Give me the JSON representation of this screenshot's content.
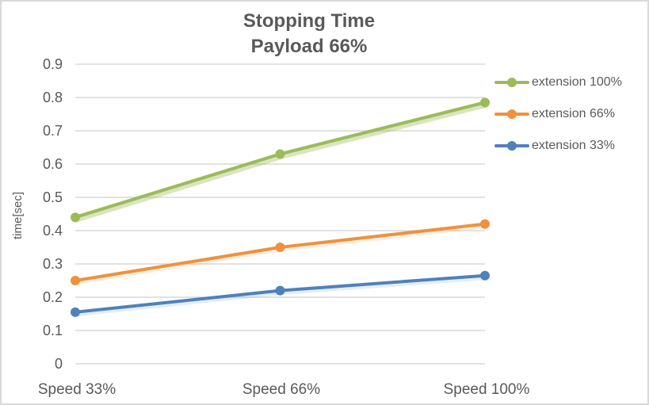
{
  "chart_data": {
    "type": "line",
    "title": "Stopping Time",
    "subtitle": "Payload 66%",
    "ylabel": "time[sec]",
    "categories": [
      "Speed 33%",
      "Speed 66%",
      "Speed 100%"
    ],
    "series": [
      {
        "name": "extension 100%",
        "color": "#9BBB59",
        "values": [
          0.44,
          0.63,
          0.785
        ]
      },
      {
        "name": "extension 66%",
        "color": "#F0913C",
        "values": [
          0.25,
          0.35,
          0.42
        ]
      },
      {
        "name": "extension 33%",
        "color": "#4E81BD",
        "values": [
          0.155,
          0.22,
          0.265
        ]
      }
    ],
    "ylim": [
      0,
      0.9
    ],
    "ytick_step": 0.1,
    "ytick_labels": [
      "0.9",
      "0.8",
      "0.7",
      "0.6",
      "0.5",
      "0.4",
      "0.3",
      "0.2",
      "0.1",
      "0"
    ],
    "grid": true,
    "legend_position": "right",
    "colors": {
      "text": "#595959",
      "grid": "#D9D9D9",
      "background": "#FFFFFF",
      "border": "#D9D9D9"
    }
  }
}
